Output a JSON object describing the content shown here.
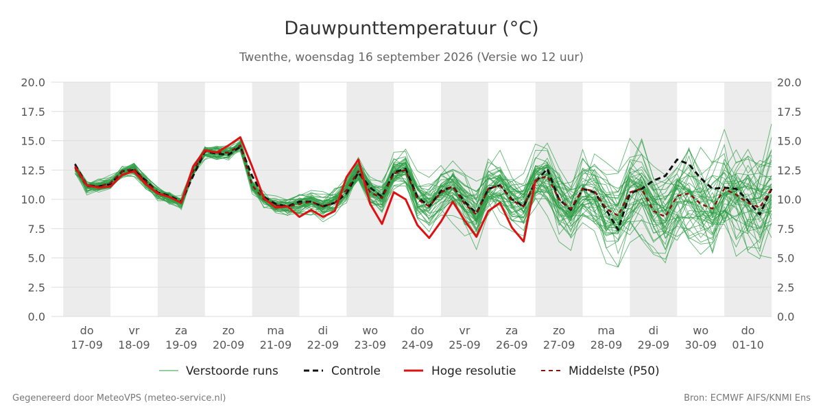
{
  "title": "Dauwpunttemperatuur (°C)",
  "subtitle": "Twenthe, woensdag 16 september 2026 (Versie wo 12 uur)",
  "footer": {
    "left": "Gegenereerd door MeteoVPS (meteo-service.nl)",
    "right": "Bron: ECMWF AIFS/KNMI Ens"
  },
  "legend": {
    "ensemble": "Verstoorde runs",
    "control": "Controle",
    "hires": "Hoge resolutie",
    "median": "Middelste (P50)"
  },
  "colors": {
    "ensemble": "#2e9e45",
    "control": "#111111",
    "hires": "#dd1111",
    "median": "#8b1010",
    "weekend_band": "#ececec",
    "grid": "#dddddd"
  },
  "chart_data": {
    "type": "line",
    "x_unit": "days since 17-09 00:00 (6-hourly steps)",
    "x_start": -0.25,
    "step": 0.25,
    "xlim": [
      -0.75,
      14.5
    ],
    "ylim": [
      0,
      20
    ],
    "yticks": [
      0.0,
      2.5,
      5.0,
      7.5,
      10.0,
      12.5,
      15.0,
      17.5,
      20.0
    ],
    "ytick_labels": [
      "0.0",
      "2.5",
      "5.0",
      "7.5",
      "10.0",
      "12.5",
      "15.0",
      "17.5",
      "20.0"
    ],
    "day_labels": [
      {
        "day": "do",
        "date": "17-09"
      },
      {
        "day": "vr",
        "date": "18-09"
      },
      {
        "day": "za",
        "date": "19-09"
      },
      {
        "day": "zo",
        "date": "20-09"
      },
      {
        "day": "ma",
        "date": "21-09"
      },
      {
        "day": "di",
        "date": "22-09"
      },
      {
        "day": "wo",
        "date": "23-09"
      },
      {
        "day": "do",
        "date": "24-09"
      },
      {
        "day": "vr",
        "date": "25-09"
      },
      {
        "day": "za",
        "date": "26-09"
      },
      {
        "day": "zo",
        "date": "27-09"
      },
      {
        "day": "ma",
        "date": "28-09"
      },
      {
        "day": "di",
        "date": "29-09"
      },
      {
        "day": "wo",
        "date": "30-09"
      },
      {
        "day": "do",
        "date": "01-10"
      }
    ],
    "shaded_days": [
      0,
      2,
      4,
      6,
      8,
      10,
      12,
      14
    ],
    "series": [
      {
        "name": "Controle",
        "style": "dashed",
        "values": [
          13.0,
          11.2,
          11.1,
          11.3,
          12.4,
          12.5,
          11.6,
          10.6,
          10.3,
          9.8,
          12.0,
          14.1,
          13.9,
          13.8,
          14.5,
          12.0,
          10.2,
          9.6,
          9.4,
          9.8,
          9.8,
          9.4,
          9.7,
          10.5,
          12.3,
          11.0,
          10.2,
          12.3,
          12.6,
          10.2,
          9.4,
          10.7,
          11.1,
          9.8,
          8.8,
          10.9,
          11.2,
          10.0,
          9.4,
          11.5,
          12.6,
          10.0,
          9.1,
          10.9,
          10.6,
          9.1,
          7.4,
          10.5,
          10.9,
          11.6,
          12.0,
          13.4,
          13.0,
          11.8,
          10.9,
          11.0,
          10.9,
          9.9,
          8.7,
          10.9
        ]
      },
      {
        "name": "Hoge resolutie",
        "style": "solid",
        "values": [
          12.8,
          11.2,
          11.0,
          11.1,
          12.1,
          12.4,
          11.3,
          10.5,
          10.2,
          9.7,
          12.8,
          14.2,
          14.0,
          14.6,
          15.3,
          12.8,
          10.1,
          9.3,
          9.4,
          8.5,
          9.1,
          8.5,
          9.0,
          11.9,
          13.4,
          9.6,
          7.9,
          10.6,
          10.0,
          7.8,
          6.7,
          8.1,
          9.8,
          8.2,
          6.8,
          9.0,
          9.7,
          7.6,
          6.4,
          11.6
        ]
      },
      {
        "name": "Middelste (P50)",
        "style": "dashed",
        "values": [
          12.7,
          11.1,
          11.1,
          11.4,
          12.4,
          12.6,
          11.5,
          10.6,
          10.2,
          9.7,
          12.4,
          14.1,
          14.0,
          14.0,
          14.6,
          11.2,
          10.0,
          9.5,
          9.4,
          9.6,
          9.8,
          9.4,
          9.7,
          10.8,
          12.4,
          10.6,
          10.1,
          12.2,
          12.5,
          10.0,
          9.4,
          10.6,
          11.1,
          9.6,
          8.7,
          10.9,
          11.2,
          9.9,
          9.4,
          11.6,
          12.0,
          10.0,
          9.2,
          10.9,
          10.7,
          9.2,
          8.6,
          10.6,
          10.9,
          9.0,
          8.5,
          10.3,
          10.5,
          9.6,
          9.2,
          10.9,
          10.4,
          9.7,
          9.3,
          10.9
        ]
      }
    ]
  }
}
